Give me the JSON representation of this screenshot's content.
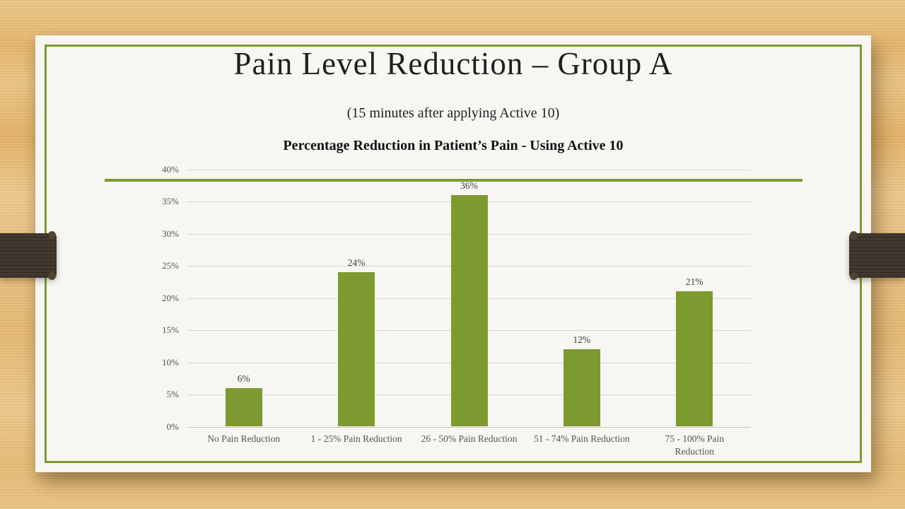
{
  "slide": {
    "title": "Pain Level Reduction – Group A",
    "subtitle": "(15 minutes after applying Active 10)"
  },
  "chart_data": {
    "type": "bar",
    "title": "Percentage Reduction in Patient’s Pain - Using Active 10",
    "categories": [
      "No Pain Reduction",
      "1 - 25% Pain Reduction",
      "26 - 50% Pain Reduction",
      "51 - 74% Pain Reduction",
      "75 - 100% Pain Reduction"
    ],
    "values": [
      6,
      24,
      36,
      12,
      21
    ],
    "data_labels": [
      "6%",
      "24%",
      "36%",
      "12%",
      "21%"
    ],
    "y_ticks": [
      "0%",
      "5%",
      "10%",
      "15%",
      "20%",
      "25%",
      "30%",
      "35%",
      "40%"
    ],
    "ylim": [
      0,
      40
    ],
    "xlabel": "",
    "ylabel": "",
    "grid": true,
    "legend": "none",
    "bar_color": "#7D9A30"
  },
  "colors": {
    "accent_green": "#7D9A30",
    "slide_bg": "#F7F6F3",
    "wood_bg": "#E8C183",
    "ribbon_brown": "#3B332A",
    "gridline": "#D7D6D2",
    "text_dark": "#1F1F1F",
    "axis_text": "#57544C"
  }
}
